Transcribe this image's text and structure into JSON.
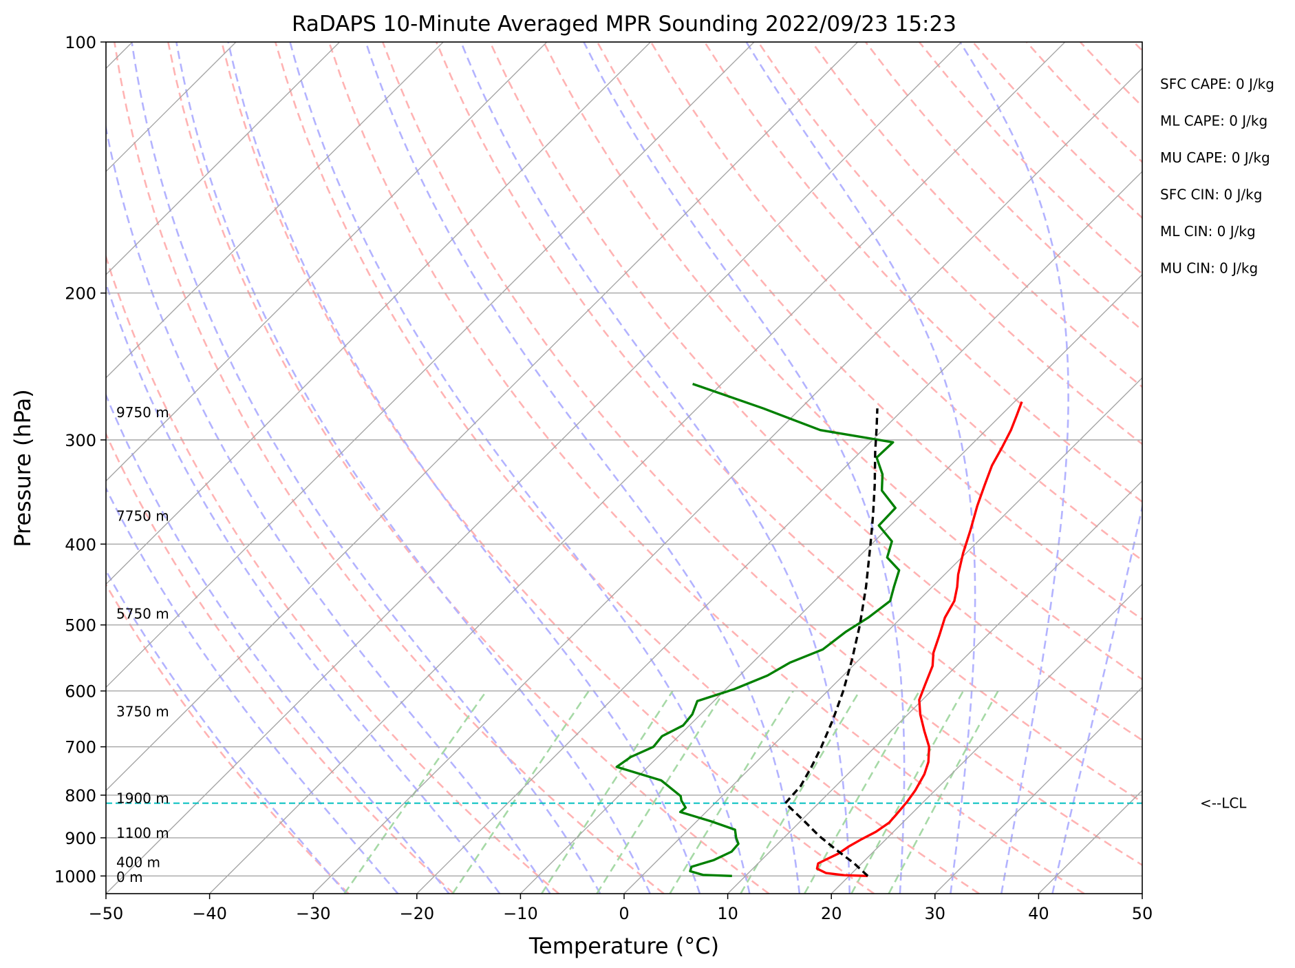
{
  "chart_data": {
    "type": "line",
    "title": "RaDAPS 10-Minute Averaged MPR Sounding 2022/09/23 15:23",
    "xlabel": "Temperature (°C)",
    "ylabel": "Pressure (hPa)",
    "xlim": [
      -50,
      50
    ],
    "ylim": [
      1050,
      100
    ],
    "y_scale": "log",
    "x_ticks": [
      -50,
      -40,
      -30,
      -20,
      -10,
      0,
      10,
      20,
      30,
      40,
      50
    ],
    "x_tick_labels": [
      "−50",
      "−40",
      "−30",
      "−20",
      "−10",
      "0",
      "10",
      "20",
      "30",
      "40",
      "50"
    ],
    "y_ticks": [
      1000,
      900,
      800,
      700,
      600,
      500,
      400,
      300,
      200,
      100
    ],
    "y_tick_labels": [
      "1000",
      "900",
      "800",
      "700",
      "600",
      "500",
      "400",
      "300",
      "200",
      "100"
    ],
    "grid": true,
    "colors": {
      "temperature": "#ff0000",
      "dewpoint": "#008000",
      "parcel": "#000000",
      "lcl": "#00bfbf",
      "dry_adiabat": "#ffb3b3",
      "moist_adiabat": "#b3b3ff",
      "mixing_ratio": "#a6d9a6",
      "isotherm": "#a6a6a6"
    },
    "series": [
      {
        "key": "temperature",
        "values": [
          [
            1000,
            21.8
          ],
          [
            998,
            19.5
          ],
          [
            992,
            17.5
          ],
          [
            980,
            16.2
          ],
          [
            966,
            15.8
          ],
          [
            955,
            16.2
          ],
          [
            940,
            16.8
          ],
          [
            922,
            17.1
          ],
          [
            905,
            17.6
          ],
          [
            885,
            18.3
          ],
          [
            863,
            18.7
          ],
          [
            845,
            18.6
          ],
          [
            815,
            18.4
          ],
          [
            790,
            18.1
          ],
          [
            755,
            17.4
          ],
          [
            730,
            16.6
          ],
          [
            700,
            15.2
          ],
          [
            670,
            13.2
          ],
          [
            640,
            11.2
          ],
          [
            615,
            9.7
          ],
          [
            590,
            8.8
          ],
          [
            560,
            7.7
          ],
          [
            540,
            6.5
          ],
          [
            515,
            5.4
          ],
          [
            490,
            4.2
          ],
          [
            468,
            3.5
          ],
          [
            450,
            2.4
          ],
          [
            435,
            1.3
          ],
          [
            410,
            -0.3
          ],
          [
            385,
            -1.8
          ],
          [
            360,
            -3.5
          ],
          [
            340,
            -4.8
          ],
          [
            322,
            -6.0
          ],
          [
            306,
            -6.8
          ],
          [
            292,
            -7.6
          ],
          [
            280,
            -8.5
          ],
          [
            270,
            -9.3
          ]
        ]
      },
      {
        "key": "dewpoint",
        "values": [
          [
            1000,
            8.7
          ],
          [
            997,
            5.8
          ],
          [
            987,
            4.2
          ],
          [
            975,
            3.9
          ],
          [
            957,
            5.4
          ],
          [
            935,
            6.3
          ],
          [
            915,
            6.2
          ],
          [
            900,
            5.4
          ],
          [
            880,
            4.5
          ],
          [
            860,
            1.4
          ],
          [
            838,
            -2.5
          ],
          [
            828,
            -2.4
          ],
          [
            812,
            -3.5
          ],
          [
            802,
            -4.0
          ],
          [
            768,
            -7.4
          ],
          [
            740,
            -13.0
          ],
          [
            720,
            -12.6
          ],
          [
            700,
            -11.4
          ],
          [
            680,
            -11.6
          ],
          [
            660,
            -10.6
          ],
          [
            640,
            -10.8
          ],
          [
            617,
            -11.6
          ],
          [
            597,
            -9.2
          ],
          [
            575,
            -7.3
          ],
          [
            555,
            -6.4
          ],
          [
            535,
            -4.5
          ],
          [
            510,
            -4.0
          ],
          [
            490,
            -3.2
          ],
          [
            468,
            -2.7
          ],
          [
            450,
            -3.7
          ],
          [
            430,
            -4.8
          ],
          [
            415,
            -7.2
          ],
          [
            397,
            -8.3
          ],
          [
            380,
            -11.1
          ],
          [
            362,
            -11.2
          ],
          [
            345,
            -14.2
          ],
          [
            330,
            -15.7
          ],
          [
            315,
            -17.9
          ],
          [
            302,
            -17.8
          ],
          [
            292,
            -26.0
          ],
          [
            275,
            -33.6
          ],
          [
            257,
            -42.8
          ]
        ]
      },
      {
        "key": "parcel",
        "values": [
          [
            1000,
            21.8
          ],
          [
            965,
            19.2
          ],
          [
            930,
            16.2
          ],
          [
            895,
            13.2
          ],
          [
            860,
            10.4
          ],
          [
            818,
            6.8
          ],
          [
            780,
            6.6
          ],
          [
            740,
            5.8
          ],
          [
            700,
            4.8
          ],
          [
            650,
            3.3
          ],
          [
            600,
            1.5
          ],
          [
            550,
            -0.7
          ],
          [
            500,
            -3.3
          ],
          [
            450,
            -6.4
          ],
          [
            400,
            -10.1
          ],
          [
            370,
            -12.6
          ],
          [
            340,
            -15.4
          ],
          [
            310,
            -18.6
          ],
          [
            290,
            -20.8
          ],
          [
            275,
            -22.6
          ]
        ]
      }
    ],
    "lcl_pressure": 818,
    "lcl_label": "<--LCL",
    "height_labels": [
      {
        "text": "9750 m",
        "p": 278
      },
      {
        "text": "7750 m",
        "p": 370
      },
      {
        "text": "5750 m",
        "p": 485
      },
      {
        "text": "3750 m",
        "p": 635
      },
      {
        "text": "1900 m",
        "p": 807
      },
      {
        "text": "1100 m",
        "p": 888
      },
      {
        "text": "400 m",
        "p": 963
      },
      {
        "text": "0 m",
        "p": 1003
      }
    ],
    "indices": [
      "SFC CAPE: 0 J/kg",
      "ML CAPE: 0 J/kg",
      "MU CAPE: 0 J/kg",
      "SFC CIN: 0 J/kg",
      "ML CIN: 0 J/kg",
      "MU CIN: 0 J/kg"
    ]
  }
}
